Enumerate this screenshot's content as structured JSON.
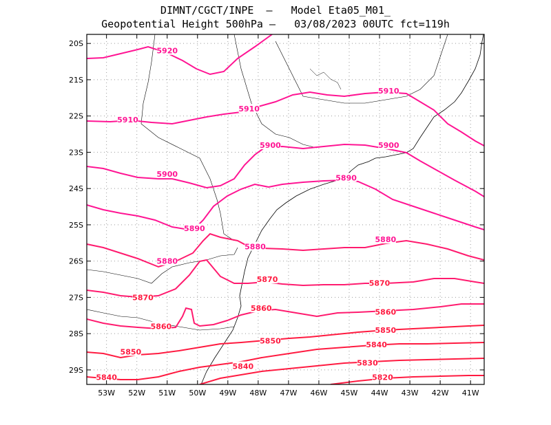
{
  "header": {
    "line1": "DIMNT/CGCT/INPE  –   Model Eta05_M01_",
    "line2": "Geopotential Height 500hPa –   03/08/2023 00UTC fct=119h"
  },
  "axes": {
    "lat_labels": [
      "20S",
      "21S",
      "22S",
      "23S",
      "24S",
      "25S",
      "26S",
      "27S",
      "28S",
      "29S"
    ],
    "lon_labels": [
      "53W",
      "52W",
      "51W",
      "50W",
      "49W",
      "48W",
      "47W",
      "46W",
      "45W",
      "44W",
      "43W",
      "42W",
      "41W"
    ],
    "grid": true,
    "grid_style": "dotted"
  },
  "colors": {
    "contour_high": "#ff1493",
    "contour_low": "#ff1a40",
    "coast": "#000000",
    "grid": "#999999"
  },
  "contour_labels": [
    {
      "text": "5920",
      "lon": -51.0,
      "lat": -20.2
    },
    {
      "text": "5910",
      "lon": -52.3,
      "lat": -22.1
    },
    {
      "text": "5910",
      "lon": -48.3,
      "lat": -21.8
    },
    {
      "text": "5910",
      "lon": -43.7,
      "lat": -21.3
    },
    {
      "text": "5900",
      "lon": -51.0,
      "lat": -23.6
    },
    {
      "text": "5900",
      "lon": -47.6,
      "lat": -22.8
    },
    {
      "text": "5900",
      "lon": -43.7,
      "lat": -22.8
    },
    {
      "text": "5890",
      "lon": -50.1,
      "lat": -25.1
    },
    {
      "text": "5890",
      "lon": -45.1,
      "lat": -23.7
    },
    {
      "text": "5880",
      "lon": -51.0,
      "lat": -26.0
    },
    {
      "text": "5880",
      "lon": -48.1,
      "lat": -25.6
    },
    {
      "text": "5880",
      "lon": -43.8,
      "lat": -25.4
    },
    {
      "text": "5870",
      "lon": -51.8,
      "lat": -27.0
    },
    {
      "text": "5870",
      "lon": -47.7,
      "lat": -26.5
    },
    {
      "text": "5870",
      "lon": -44.0,
      "lat": -26.6
    },
    {
      "text": "5860",
      "lon": -51.2,
      "lat": -27.8
    },
    {
      "text": "5860",
      "lon": -47.9,
      "lat": -27.3
    },
    {
      "text": "5860",
      "lon": -43.8,
      "lat": -27.4
    },
    {
      "text": "5850",
      "lon": -52.2,
      "lat": -28.5
    },
    {
      "text": "5850",
      "lon": -47.6,
      "lat": -28.2
    },
    {
      "text": "5850",
      "lon": -43.8,
      "lat": -27.9
    },
    {
      "text": "5840",
      "lon": -53.0,
      "lat": -29.2
    },
    {
      "text": "5840",
      "lon": -48.5,
      "lat": -28.9
    },
    {
      "text": "5840",
      "lon": -44.1,
      "lat": -28.3
    },
    {
      "text": "5830",
      "lon": -44.4,
      "lat": -28.8
    },
    {
      "text": "5820",
      "lon": -43.9,
      "lat": -29.2
    }
  ]
}
